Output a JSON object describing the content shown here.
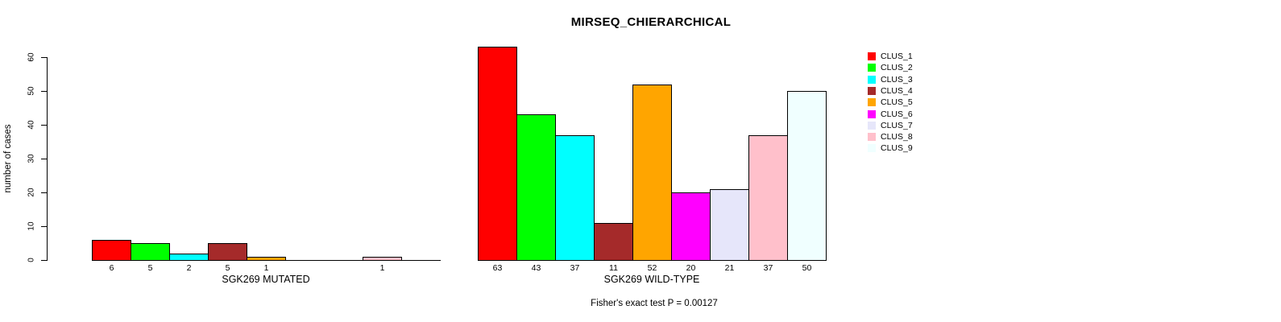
{
  "chart_data": {
    "type": "bar",
    "title": "MIRSEQ_CHIERARCHICAL",
    "ylabel": "number of cases",
    "ylim": [
      0,
      60
    ],
    "yticks": [
      0,
      10,
      20,
      30,
      40,
      50,
      60
    ],
    "grid": false,
    "legend_position": "right",
    "clusters": [
      "CLUS_1",
      "CLUS_2",
      "CLUS_3",
      "CLUS_4",
      "CLUS_5",
      "CLUS_6",
      "CLUS_7",
      "CLUS_8",
      "CLUS_9"
    ],
    "colors": [
      "#ff0000",
      "#00ff00",
      "#00ffff",
      "#a52a2a",
      "#ffa500",
      "#ff00ff",
      "#e6e6fa",
      "#ffc0cb",
      "#f0ffff"
    ],
    "panels": [
      {
        "xlabel": "SGK269 MUTATED",
        "values": [
          6,
          5,
          2,
          5,
          1,
          0,
          0,
          1,
          0
        ],
        "bar_labels": [
          "6",
          "5",
          "2",
          "5",
          "1",
          "",
          "",
          "1",
          ""
        ]
      },
      {
        "xlabel": "SGK269 WILD-TYPE",
        "values": [
          63,
          43,
          37,
          11,
          52,
          20,
          21,
          37,
          50
        ],
        "bar_labels": [
          "63",
          "43",
          "37",
          "11",
          "52",
          "20",
          "21",
          "37",
          "50"
        ]
      }
    ],
    "annotation": "Fisher's exact test P = 0.00127"
  }
}
